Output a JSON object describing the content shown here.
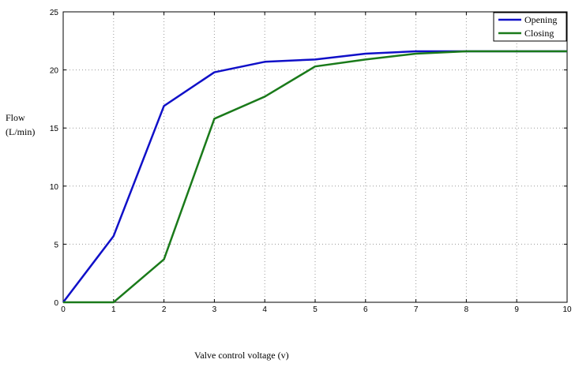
{
  "chart_data": {
    "type": "line",
    "x": [
      0,
      1,
      2,
      3,
      4,
      5,
      6,
      7,
      8,
      9,
      10
    ],
    "series": [
      {
        "name": "Opening",
        "color": "#1010c8",
        "values": [
          0,
          5.7,
          16.9,
          19.8,
          20.7,
          20.9,
          21.4,
          21.6,
          21.6,
          21.6,
          21.6
        ]
      },
      {
        "name": "Closing",
        "color": "#1a7a1a",
        "values": [
          0,
          0,
          3.7,
          15.8,
          17.7,
          20.3,
          20.9,
          21.4,
          21.6,
          21.6,
          21.6
        ]
      }
    ],
    "xlabel": "Valve control voltage (v)",
    "ylabel_line1": "Flow",
    "ylabel_line2": "(L/min)",
    "xlim": [
      0,
      10
    ],
    "ylim": [
      0,
      25
    ],
    "xticks": [
      "0",
      "1",
      "2",
      "3",
      "4",
      "5",
      "6",
      "7",
      "8",
      "9",
      "10"
    ],
    "yticks": [
      "0",
      "5",
      "10",
      "15",
      "20",
      "25"
    ],
    "grid": true,
    "legend_position": "top-right"
  }
}
